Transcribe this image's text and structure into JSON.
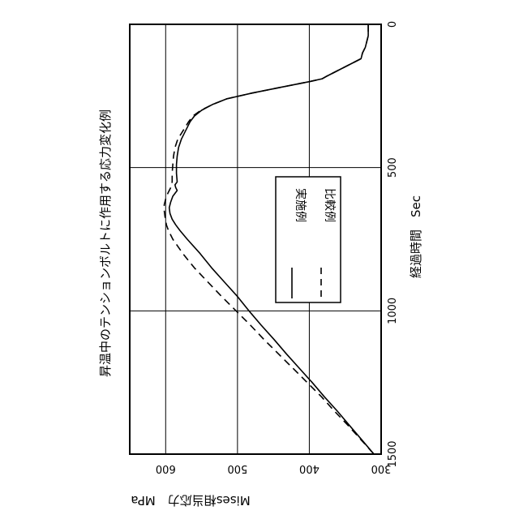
{
  "chart_data": {
    "type": "line",
    "title": "昇温中のテンションボルトに作用する応力変化例",
    "xlabel": "経過時間　Sec",
    "ylabel": "Mises相当応力　MPa",
    "xlim": [
      0,
      1500
    ],
    "ylim": [
      300,
      650
    ],
    "x_ticks": [
      0,
      500,
      1000,
      1500
    ],
    "y_ticks": [
      300,
      400,
      500,
      600
    ],
    "grid": true,
    "legend_position": "center",
    "orientation": "rotated-90-ccw",
    "series": [
      {
        "name": "実施例",
        "style": "solid",
        "x": [
          0,
          40,
          80,
          100,
          110,
          120,
          180,
          190,
          200,
          220,
          240,
          260,
          280,
          300,
          320,
          340,
          360,
          380,
          400,
          430,
          460,
          490,
          520,
          550,
          560,
          570,
          580,
          600,
          620,
          640,
          660,
          680,
          700,
          720,
          750,
          800,
          850,
          900,
          950,
          1000,
          1050,
          1100,
          1150,
          1200,
          1250,
          1300,
          1350,
          1400,
          1450,
          1500
        ],
        "y": [
          318,
          318,
          322,
          326,
          327,
          328,
          375,
          382,
          400,
          440,
          480,
          515,
          535,
          550,
          560,
          566,
          570,
          574,
          578,
          582,
          584,
          585,
          585,
          584,
          587,
          586,
          584,
          590,
          593,
          595,
          594,
          591,
          586,
          580,
          570,
          552,
          536,
          518,
          500,
          484,
          467,
          449,
          432,
          414,
          396,
          379,
          361,
          344,
          327,
          310
        ]
      },
      {
        "name": "比較例",
        "style": "dashed",
        "x": [
          0,
          40,
          80,
          100,
          110,
          120,
          180,
          190,
          200,
          220,
          240,
          260,
          280,
          300,
          320,
          340,
          360,
          380,
          400,
          430,
          460,
          490,
          520,
          550,
          570,
          590,
          610,
          630,
          650,
          670,
          700,
          720,
          750,
          800,
          850,
          900,
          950,
          1000,
          1050,
          1100,
          1150,
          1200,
          1250,
          1300,
          1350,
          1400,
          1450,
          1500
        ],
        "y": [
          318,
          318,
          322,
          326,
          327,
          328,
          375,
          382,
          400,
          440,
          480,
          515,
          535,
          551,
          562,
          568,
          573,
          578,
          583,
          587,
          589,
          590,
          591,
          591,
          593,
          597,
          600,
          602,
          602,
          601,
          599,
          596,
          590,
          576,
          560,
          541,
          522,
          502,
          482,
          463,
          443,
          423,
          403,
          383,
          365,
          346,
          328,
          310
        ]
      }
    ]
  }
}
